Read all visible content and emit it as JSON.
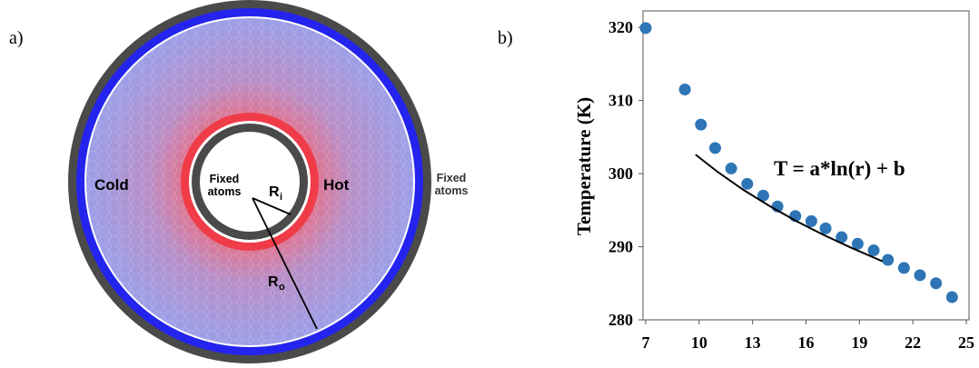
{
  "panels": {
    "a": "a)",
    "b": "b)"
  },
  "diagram": {
    "cold": "Cold",
    "hot": "Hot",
    "inner_fixed": [
      "Fixed",
      "atoms"
    ],
    "outer_fixed": [
      "Fixed",
      "atoms"
    ],
    "r_inner": {
      "symbol": "R",
      "subscript": "i"
    },
    "r_outer": {
      "symbol": "R",
      "subscript": "o"
    }
  },
  "chart_data": {
    "type": "scatter",
    "ylabel": "Temperature (K)",
    "annotation": "T = a*ln(r) + b",
    "xlim": [
      7,
      25
    ],
    "xticks": [
      7,
      10,
      13,
      16,
      19,
      22,
      25
    ],
    "ylim": [
      280,
      322
    ],
    "yticks": [
      280,
      290,
      300,
      310,
      320
    ],
    "grid": false,
    "series": [
      {
        "color": "#2e75b6",
        "mode": "markers",
        "x": [
          7.0,
          9.2,
          10.1,
          10.9,
          11.8,
          12.7,
          13.6,
          14.4,
          15.4,
          16.3,
          17.1,
          18.0,
          18.9,
          19.8,
          20.6,
          21.5,
          22.4,
          23.3,
          24.2
        ],
        "values": [
          319.9,
          311.5,
          306.7,
          303.5,
          300.7,
          298.6,
          297.0,
          295.5,
          294.2,
          293.5,
          292.5,
          291.3,
          290.4,
          289.5,
          288.2,
          287.1,
          286.1,
          285.0,
          283.1
        ]
      },
      {
        "color": "#000000",
        "mode": "line",
        "x": [
          9.8,
          11,
          12.5,
          14,
          15.5,
          17,
          18.5,
          20.3
        ],
        "values": [
          302.6,
          300.3,
          297.75,
          295.5,
          293.45,
          291.6,
          289.9,
          288.0
        ]
      }
    ]
  }
}
